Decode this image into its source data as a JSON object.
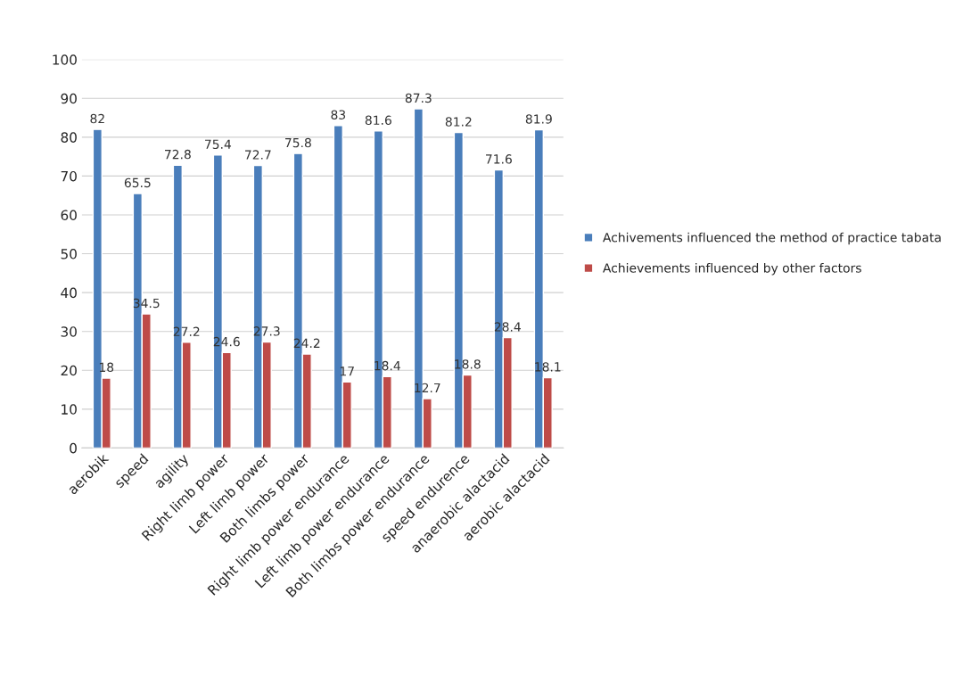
{
  "chart_data": {
    "type": "bar",
    "categories": [
      "aerobik",
      "speed",
      "agility",
      "Right limb power",
      "Left limb power",
      "Both limbs power",
      "Right limb power endurance",
      "Left limb power endurance",
      "Both limbs power endurance",
      "speed endurence",
      "anaerobic alactacid",
      "aerobic alactacid"
    ],
    "series": [
      {
        "name": "Achivements influenced the method of practice tabata",
        "color": "#4a7ebb",
        "values": [
          82,
          65.5,
          72.8,
          75.4,
          72.7,
          75.8,
          83,
          81.6,
          87.3,
          81.2,
          71.6,
          81.9
        ]
      },
      {
        "name": "Achievements influenced by other factors",
        "color": "#be4b48",
        "values": [
          18,
          34.5,
          27.2,
          24.6,
          27.3,
          24.2,
          17,
          18.4,
          12.7,
          18.8,
          28.4,
          18.1
        ]
      }
    ],
    "ylim": [
      0,
      100
    ],
    "yticks": [
      0,
      10,
      20,
      30,
      40,
      50,
      60,
      70,
      80,
      90,
      100
    ],
    "grid": "y",
    "legend": "right",
    "data_labels": true
  }
}
